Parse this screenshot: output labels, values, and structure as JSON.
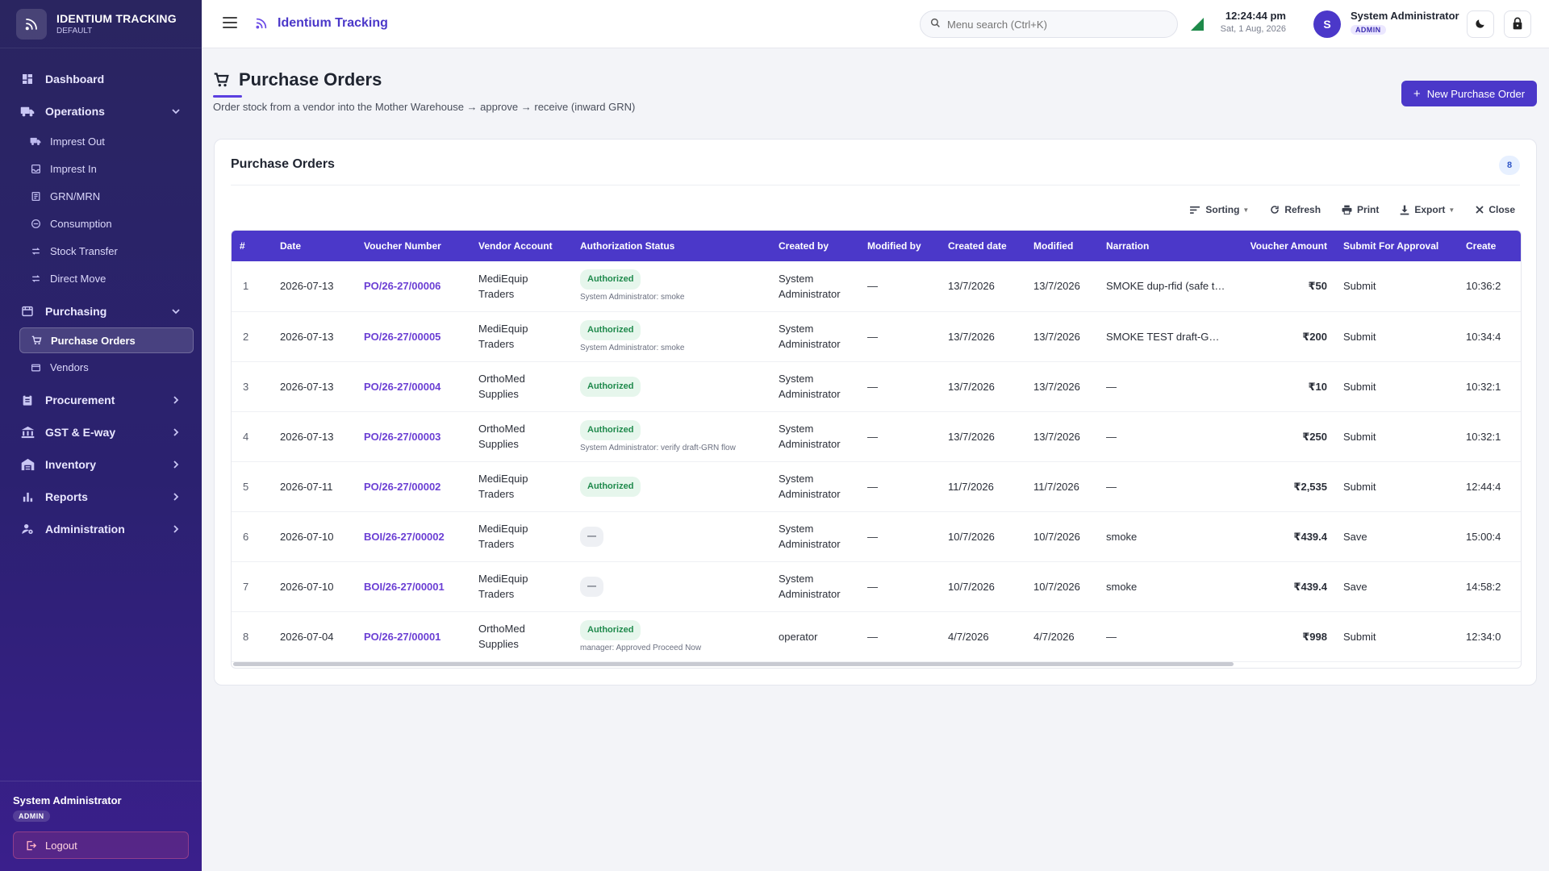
{
  "brand": {
    "title": "IDENTIUM TRACKING",
    "subtitle": "DEFAULT"
  },
  "sidebar": {
    "dashboard": "Dashboard",
    "operations": {
      "label": "Operations",
      "items": [
        "Imprest Out",
        "Imprest In",
        "GRN/MRN",
        "Consumption",
        "Stock Transfer",
        "Direct Move"
      ]
    },
    "purchasing": {
      "label": "Purchasing",
      "items": [
        "Purchase Orders",
        "Vendors"
      ]
    },
    "procurement": "Procurement",
    "gst": "GST & E-way",
    "inventory": "Inventory",
    "reports": "Reports",
    "administration": "Administration",
    "footer": {
      "user": "System Administrator",
      "role": "ADMIN",
      "logout": "Logout"
    }
  },
  "header": {
    "app_title": "Identium Tracking",
    "search_placeholder": "Menu search (Ctrl+K)",
    "time": "12:24:44 pm",
    "date": "Sat, 1 Aug, 2026",
    "avatar_initial": "S",
    "user_name": "System Administrator",
    "user_role": "ADMIN"
  },
  "page": {
    "title": "Purchase Orders",
    "subtitle": "Order stock from a vendor into the Mother Warehouse → approve → receive (inward GRN)",
    "new_button": "New Purchase Order"
  },
  "card": {
    "title": "Purchase Orders",
    "count": "8",
    "toolbar": {
      "sorting": "Sorting",
      "refresh": "Refresh",
      "print": "Print",
      "export": "Export",
      "close": "Close"
    }
  },
  "table": {
    "columns": [
      "#",
      "Date",
      "Voucher Number",
      "Vendor Account",
      "Authorization Status",
      "Created by",
      "Modified by",
      "Created date",
      "Modified",
      "Narration",
      "Voucher Amount",
      "Submit For Approval",
      "Create"
    ],
    "rows": [
      {
        "idx": "1",
        "date": "2026-07-13",
        "voucher": "PO/26-27/00006",
        "vendor": "MediEquip Traders",
        "auth": "Authorized",
        "auth_note": "System Administrator: smoke",
        "created_by": "System Administrator",
        "modified_by": "—",
        "created_date": "13/7/2026",
        "modified": "13/7/2026",
        "narration": "SMOKE dup-rfid (safe to …",
        "amount": "₹50",
        "submit": "Submit",
        "time": "10:36:2"
      },
      {
        "idx": "2",
        "date": "2026-07-13",
        "voucher": "PO/26-27/00005",
        "vendor": "MediEquip Traders",
        "auth": "Authorized",
        "auth_note": "System Administrator: smoke",
        "created_by": "System Administrator",
        "modified_by": "—",
        "created_date": "13/7/2026",
        "modified": "13/7/2026",
        "narration": "SMOKE TEST draft-GRN …",
        "amount": "₹200",
        "submit": "Submit",
        "time": "10:34:4"
      },
      {
        "idx": "3",
        "date": "2026-07-13",
        "voucher": "PO/26-27/00004",
        "vendor": "OrthoMed Supplies",
        "auth": "Authorized",
        "auth_note": "",
        "created_by": "System Administrator",
        "modified_by": "—",
        "created_date": "13/7/2026",
        "modified": "13/7/2026",
        "narration": "—",
        "amount": "₹10",
        "submit": "Submit",
        "time": "10:32:1"
      },
      {
        "idx": "4",
        "date": "2026-07-13",
        "voucher": "PO/26-27/00003",
        "vendor": "OrthoMed Supplies",
        "auth": "Authorized",
        "auth_note": "System Administrator: verify draft-GRN flow",
        "created_by": "System Administrator",
        "modified_by": "—",
        "created_date": "13/7/2026",
        "modified": "13/7/2026",
        "narration": "—",
        "amount": "₹250",
        "submit": "Submit",
        "time": "10:32:1"
      },
      {
        "idx": "5",
        "date": "2026-07-11",
        "voucher": "PO/26-27/00002",
        "vendor": "MediEquip Traders",
        "auth": "Authorized",
        "auth_note": "",
        "created_by": "System Administrator",
        "modified_by": "—",
        "created_date": "11/7/2026",
        "modified": "11/7/2026",
        "narration": "—",
        "amount": "₹2,535",
        "submit": "Submit",
        "time": "12:44:4"
      },
      {
        "idx": "6",
        "date": "2026-07-10",
        "voucher": "BOI/26-27/00002",
        "vendor": "MediEquip Traders",
        "auth": "—",
        "auth_note": "",
        "created_by": "System Administrator",
        "modified_by": "—",
        "created_date": "10/7/2026",
        "modified": "10/7/2026",
        "narration": "smoke",
        "amount": "₹439.4",
        "submit": "Save",
        "time": "15:00:4"
      },
      {
        "idx": "7",
        "date": "2026-07-10",
        "voucher": "BOI/26-27/00001",
        "vendor": "MediEquip Traders",
        "auth": "—",
        "auth_note": "",
        "created_by": "System Administrator",
        "modified_by": "—",
        "created_date": "10/7/2026",
        "modified": "10/7/2026",
        "narration": "smoke",
        "amount": "₹439.4",
        "submit": "Save",
        "time": "14:58:2"
      },
      {
        "idx": "8",
        "date": "2026-07-04",
        "voucher": "PO/26-27/00001",
        "vendor": "OrthoMed Supplies",
        "auth": "Authorized",
        "auth_note": "manager: Approved Proceed Now",
        "created_by": "operator",
        "modified_by": "—",
        "created_date": "4/7/2026",
        "modified": "4/7/2026",
        "narration": "—",
        "amount": "₹998",
        "submit": "Submit",
        "time": "12:34:0"
      }
    ]
  }
}
